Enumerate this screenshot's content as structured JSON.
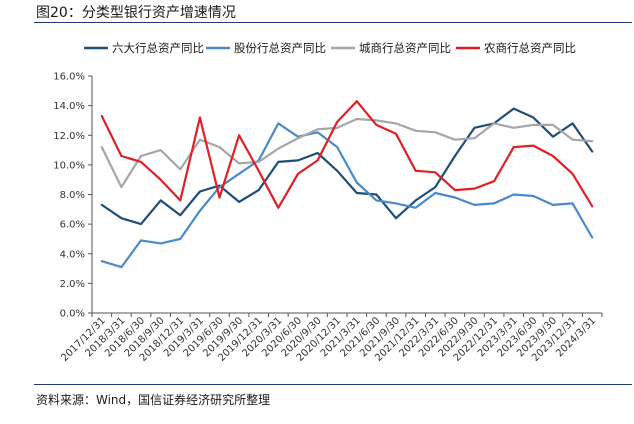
{
  "figure": {
    "title": "图20：分类型银行资产增速情况",
    "source": "资料来源：Wind，国信证券经济研究所整理"
  },
  "chart_data": {
    "type": "line",
    "title": "",
    "xlabel": "",
    "ylabel": "",
    "ylim": [
      0,
      16
    ],
    "yticks": [
      "0.0%",
      "2.0%",
      "4.0%",
      "6.0%",
      "8.0%",
      "10.0%",
      "12.0%",
      "14.0%",
      "16.0%"
    ],
    "grid": false,
    "legend_position": "top",
    "categories": [
      "2017/12/31",
      "2018/3/31",
      "2018/6/30",
      "2018/9/30",
      "2018/12/31",
      "2019/3/31",
      "2019/6/30",
      "2019/9/30",
      "2019/12/31",
      "2020/3/31",
      "2020/6/30",
      "2020/9/30",
      "2020/12/31",
      "2021/3/31",
      "2021/6/30",
      "2021/9/30",
      "2021/12/31",
      "2022/3/31",
      "2022/6/30",
      "2022/9/30",
      "2022/12/31",
      "2023/3/31",
      "2023/6/30",
      "2023/9/30",
      "2023/12/31",
      "2024/3/31"
    ],
    "series": [
      {
        "name": "六大行总资产同比",
        "color": "#1f4e79",
        "values": [
          7.3,
          6.4,
          6.0,
          7.6,
          6.6,
          8.2,
          8.6,
          7.5,
          8.3,
          10.2,
          10.3,
          10.8,
          9.6,
          8.1,
          8.0,
          6.4,
          7.6,
          8.5,
          10.6,
          12.5,
          12.8,
          13.8,
          13.2,
          11.9,
          12.8,
          10.9
        ]
      },
      {
        "name": "股份行总资产同比",
        "color": "#4a8ac9",
        "values": [
          3.5,
          3.1,
          4.9,
          4.7,
          5.0,
          6.9,
          8.5,
          9.4,
          10.3,
          12.8,
          11.9,
          12.2,
          11.2,
          8.8,
          7.6,
          7.4,
          7.1,
          8.1,
          7.8,
          7.3,
          7.4,
          8.0,
          7.9,
          7.3,
          7.4,
          5.1
        ]
      },
      {
        "name": "城商行总资产同比",
        "color": "#a6a6a6",
        "values": [
          11.2,
          8.5,
          10.6,
          11.0,
          9.7,
          11.7,
          11.2,
          10.1,
          10.2,
          11.1,
          11.8,
          12.4,
          12.5,
          13.1,
          13.0,
          12.8,
          12.3,
          12.2,
          11.7,
          11.8,
          12.8,
          12.5,
          12.7,
          12.7,
          11.7,
          11.6
        ]
      },
      {
        "name": "农商行总资产同比",
        "color": "#e11f26",
        "values": [
          13.3,
          10.6,
          10.2,
          9.0,
          7.6,
          13.2,
          7.8,
          12.0,
          9.6,
          7.1,
          9.4,
          10.3,
          12.9,
          14.3,
          12.7,
          12.1,
          9.6,
          9.5,
          8.3,
          8.4,
          8.9,
          11.2,
          11.3,
          10.6,
          9.4,
          7.2
        ]
      }
    ]
  }
}
